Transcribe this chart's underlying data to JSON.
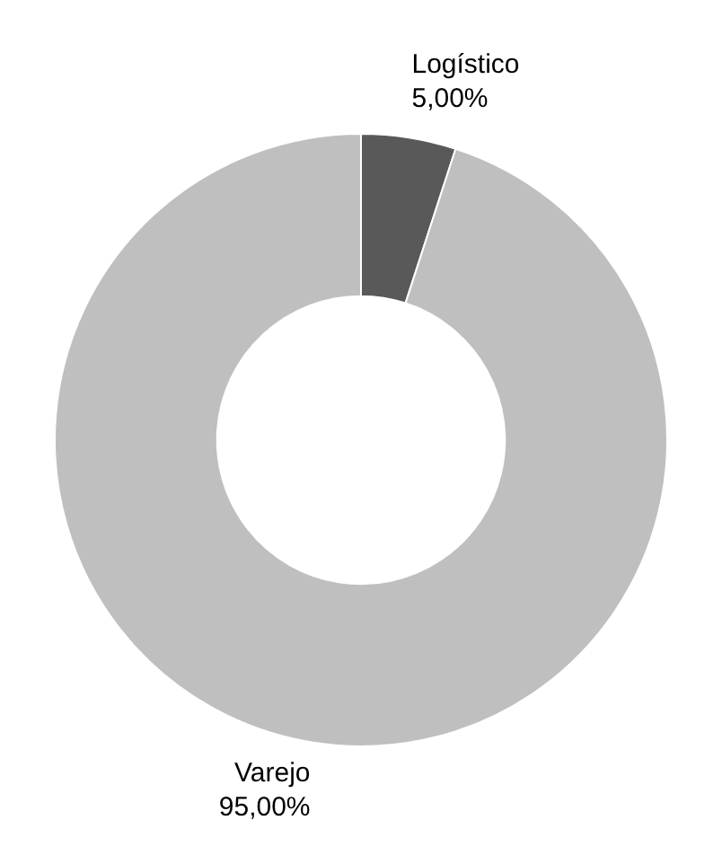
{
  "chart_data": {
    "type": "donut",
    "categories": [
      "Logístico",
      "Varejo"
    ],
    "values": [
      5.0,
      95.0
    ],
    "colors": [
      "#595959",
      "#bfbfbf"
    ],
    "value_labels": [
      "5,00%",
      "95,00%"
    ],
    "legend": false
  }
}
